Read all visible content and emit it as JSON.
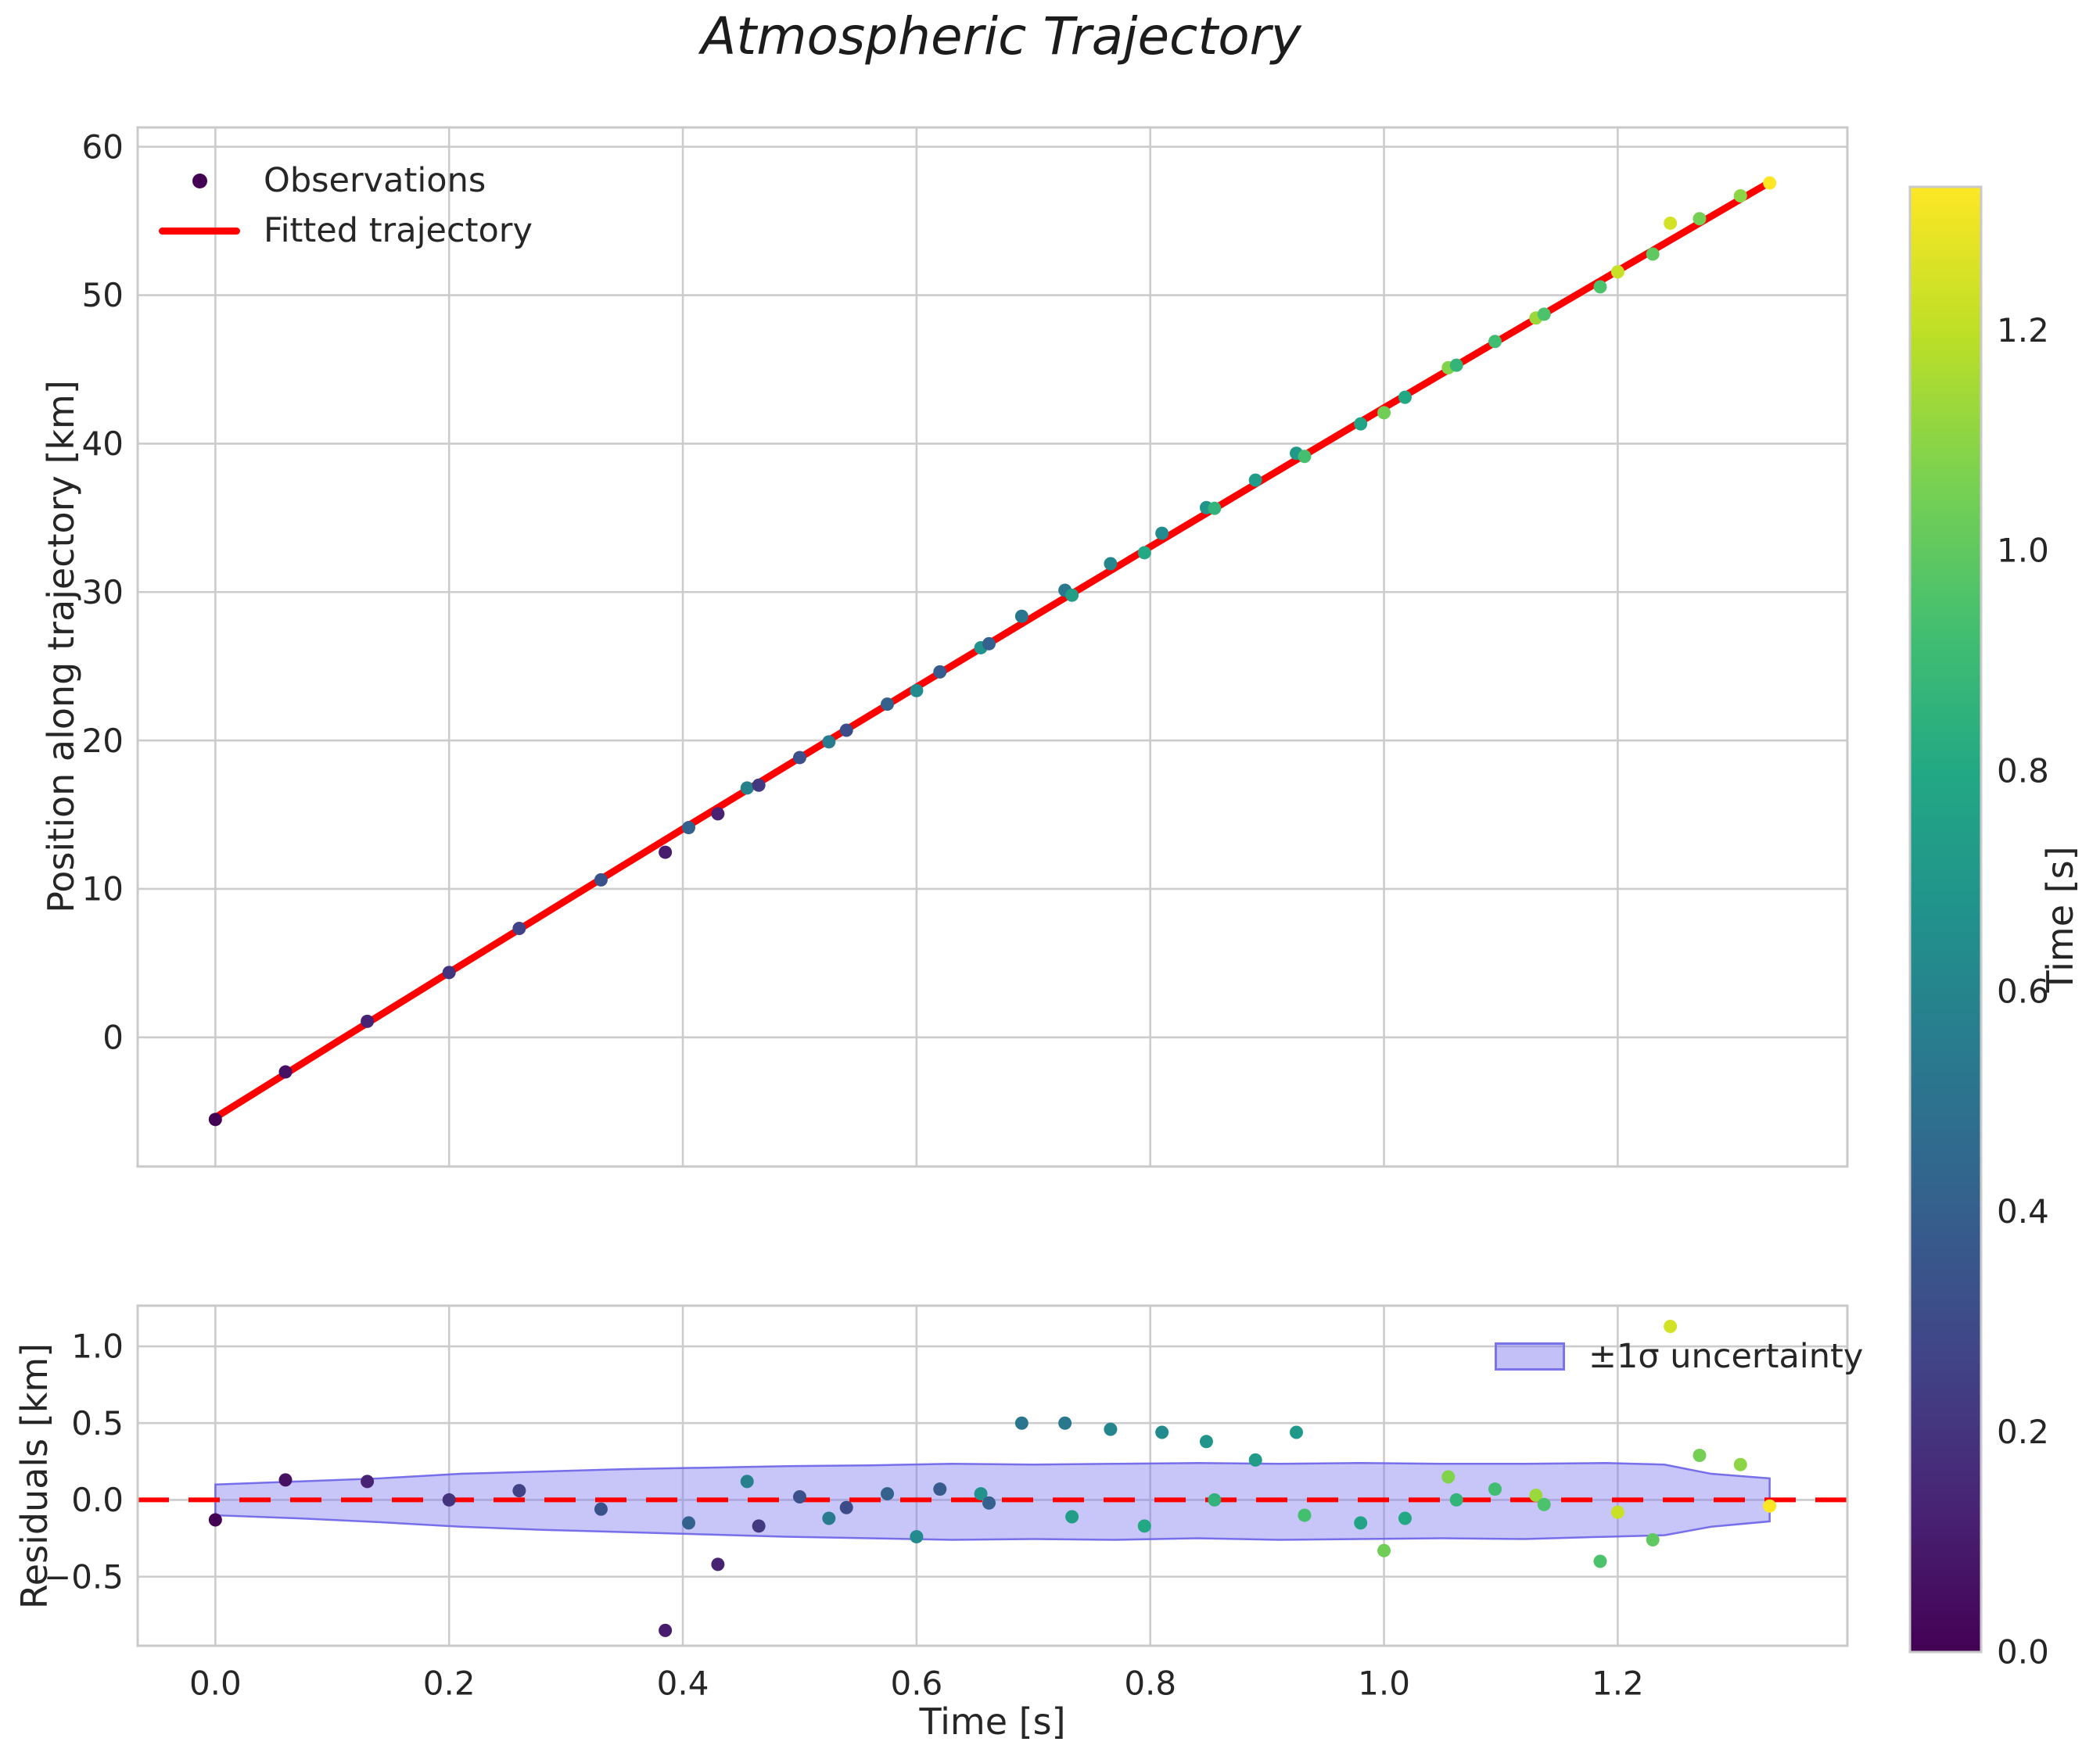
{
  "figure": {
    "background": "#ffffff",
    "text_color": "#262626",
    "grid_color": "#cccccc"
  },
  "chart_data": {
    "type": "scatter",
    "title": "Atmospheric Trajectory",
    "colormap": "viridis",
    "main_panel": {
      "ylabel": "Position along trajectory [km]",
      "xlim": [
        -0.0665,
        1.3965
      ],
      "ylim": [
        -8.7,
        61.3
      ],
      "yticks": {
        "values": [
          0,
          10,
          20,
          30,
          40,
          50,
          60
        ],
        "labels": [
          "0",
          "10",
          "20",
          "30",
          "40",
          "50",
          "60"
        ]
      },
      "xgrid_values": [
        0.0,
        0.2,
        0.4,
        0.6,
        0.8,
        1.0,
        1.2
      ],
      "legend": {
        "observations": "Observations",
        "fit": "Fitted trajectory"
      },
      "fit_line": {
        "color": "#ff0000",
        "t": [
          0.0,
          0.1,
          0.2,
          0.3,
          0.4,
          0.5,
          0.6,
          0.7,
          0.8,
          0.9,
          1.0,
          1.1,
          1.2,
          1.3,
          1.33
        ],
        "position": [
          -5.4,
          -0.5,
          4.37,
          9.22,
          14.04,
          18.83,
          23.6,
          28.34,
          33.05,
          37.74,
          42.41,
          47.04,
          51.65,
          56.23,
          57.6
        ]
      },
      "observations": {
        "t": [
          0.0,
          0.06,
          0.13,
          0.2,
          0.26,
          0.33,
          0.385,
          0.405,
          0.43,
          0.455,
          0.465,
          0.5,
          0.525,
          0.54,
          0.575,
          0.6,
          0.62,
          0.655,
          0.662,
          0.69,
          0.727,
          0.733,
          0.766,
          0.795,
          0.81,
          0.848,
          0.855,
          0.89,
          0.925,
          0.932,
          0.98,
          1.0,
          1.018,
          1.055,
          1.062,
          1.095,
          1.13,
          1.137,
          1.185,
          1.2,
          1.23,
          1.245,
          1.27,
          1.305,
          1.33
        ],
        "position": [
          -5.53,
          -2.33,
          1.08,
          4.37,
          7.34,
          10.61,
          12.47,
          14.13,
          15.06,
          16.8,
          16.99,
          18.85,
          19.91,
          20.69,
          22.45,
          23.36,
          24.62,
          26.25,
          26.52,
          28.37,
          30.12,
          29.79,
          31.91,
          32.65,
          33.96,
          35.69,
          35.64,
          37.54,
          39.35,
          39.14,
          41.33,
          42.08,
          43.12,
          45.11,
          45.28,
          46.88,
          48.46,
          48.72,
          50.56,
          51.57,
          52.77,
          54.85,
          55.15,
          56.69,
          57.56
        ],
        "color_time": [
          0.0,
          0.06,
          0.13,
          0.2,
          0.26,
          0.33,
          0.1,
          0.42,
          0.13,
          0.58,
          0.22,
          0.33,
          0.55,
          0.3,
          0.42,
          0.63,
          0.38,
          0.67,
          0.41,
          0.52,
          0.53,
          0.74,
          0.61,
          0.8,
          0.63,
          0.69,
          0.86,
          0.73,
          0.71,
          0.93,
          0.77,
          1.04,
          0.8,
          1.08,
          0.87,
          0.92,
          1.13,
          0.95,
          0.95,
          1.22,
          1.0,
          1.24,
          1.05,
          1.1,
          1.33
        ]
      }
    },
    "residual_panel": {
      "ylabel": "Residuals [km]",
      "xlabel": "Time [s]",
      "ylim": [
        -0.95,
        1.265
      ],
      "yticks": {
        "values": [
          -0.5,
          0.0,
          0.5,
          1.0
        ],
        "labels": [
          "−0.5",
          "0.0",
          "0.5",
          "1.0"
        ]
      },
      "xticks": {
        "values": [
          0.0,
          0.2,
          0.4,
          0.6,
          0.8,
          1.0,
          1.2
        ],
        "labels": [
          "0.0",
          "0.2",
          "0.4",
          "0.6",
          "0.8",
          "1.0",
          "1.2"
        ]
      },
      "legend_label": "±1σ uncertainty",
      "zero_line_color": "#ff0000",
      "band_color": "#7b74ee",
      "band": {
        "t": [
          0.0,
          0.07,
          0.14,
          0.21,
          0.28,
          0.35,
          0.42,
          0.49,
          0.56,
          0.63,
          0.7,
          0.77,
          0.84,
          0.91,
          0.98,
          1.05,
          1.12,
          1.19,
          1.24,
          1.28,
          1.33
        ],
        "upper": [
          0.1,
          0.12,
          0.14,
          0.17,
          0.185,
          0.2,
          0.21,
          0.22,
          0.225,
          0.235,
          0.23,
          0.235,
          0.24,
          0.235,
          0.24,
          0.235,
          0.235,
          0.24,
          0.23,
          0.17,
          0.14
        ],
        "lower": [
          -0.1,
          -0.12,
          -0.145,
          -0.175,
          -0.195,
          -0.21,
          -0.225,
          -0.24,
          -0.25,
          -0.26,
          -0.255,
          -0.26,
          -0.25,
          -0.26,
          -0.255,
          -0.25,
          -0.255,
          -0.24,
          -0.23,
          -0.175,
          -0.14
        ]
      },
      "residuals": {
        "t": [
          0.0,
          0.06,
          0.13,
          0.2,
          0.26,
          0.33,
          0.385,
          0.405,
          0.43,
          0.455,
          0.465,
          0.5,
          0.525,
          0.54,
          0.575,
          0.6,
          0.62,
          0.655,
          0.662,
          0.69,
          0.727,
          0.733,
          0.766,
          0.795,
          0.81,
          0.848,
          0.855,
          0.89,
          0.925,
          0.932,
          0.98,
          1.0,
          1.018,
          1.055,
          1.062,
          1.095,
          1.13,
          1.137,
          1.185,
          1.2,
          1.23,
          1.245,
          1.27,
          1.305,
          1.33
        ],
        "value": [
          -0.13,
          0.13,
          0.12,
          0.0,
          0.06,
          -0.06,
          -0.85,
          -0.15,
          -0.42,
          0.12,
          -0.17,
          0.02,
          -0.12,
          -0.05,
          0.04,
          -0.24,
          0.07,
          0.04,
          -0.02,
          0.5,
          0.5,
          -0.11,
          0.46,
          -0.17,
          0.44,
          0.38,
          0.0,
          0.26,
          0.44,
          -0.1,
          -0.15,
          -0.33,
          -0.12,
          0.15,
          0.0,
          0.07,
          0.03,
          -0.03,
          -0.4,
          -0.08,
          -0.26,
          1.13,
          0.29,
          0.23,
          -0.04
        ]
      }
    },
    "colorbar": {
      "label": "Time [s]",
      "vmin": 0.0,
      "vmax": 1.33,
      "ticks": {
        "values": [
          0.0,
          0.2,
          0.4,
          0.6,
          0.8,
          1.0,
          1.2
        ],
        "labels": [
          "0.0",
          "0.2",
          "0.4",
          "0.6",
          "0.8",
          "1.0",
          "1.2"
        ]
      }
    }
  }
}
